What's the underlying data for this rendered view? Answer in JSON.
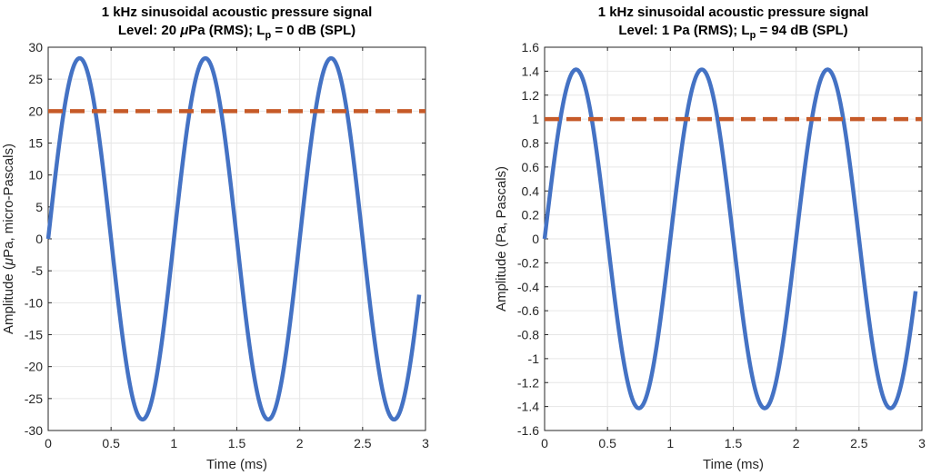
{
  "chart_data": [
    {
      "type": "line",
      "title_line1": "1 kHz sinusoidal acoustic pressure signal",
      "title_line2_prefix": "Level: 20 ",
      "title_line2_mu": "μ",
      "title_line2_mid": "Pa (RMS); L",
      "title_line2_sub": "p",
      "title_line2_suffix": " = 0 dB (SPL)",
      "xlabel": "Time (ms)",
      "ylabel_prefix": "Amplitude (",
      "ylabel_mu": "μ",
      "ylabel_suffix": "Pa, micro-Pascals)",
      "xlim": [
        0,
        3
      ],
      "ylim": [
        -30,
        30
      ],
      "xticks": [
        0,
        0.5,
        1,
        1.5,
        2,
        2.5,
        3
      ],
      "xtick_labels": [
        "0",
        "0.5",
        "1",
        "1.5",
        "2",
        "2.5",
        "3"
      ],
      "yticks": [
        -30,
        -25,
        -20,
        -15,
        -10,
        -5,
        0,
        5,
        10,
        15,
        20,
        25,
        30
      ],
      "ytick_labels": [
        "-30",
        "-25",
        "-20",
        "-15",
        "-10",
        "-5",
        "0",
        "5",
        "10",
        "15",
        "20",
        "25",
        "30"
      ],
      "grid": true,
      "series": [
        {
          "kind": "sine",
          "amplitude": 28.28,
          "frequency_per_ms": 1,
          "x_range": [
            0,
            2.95
          ],
          "color": "#4472c4",
          "style": "solid"
        },
        {
          "kind": "constant",
          "value": 20,
          "x_range": [
            0,
            3
          ],
          "color": "#c65a28",
          "style": "dashed"
        }
      ]
    },
    {
      "type": "line",
      "title_line1": "1 kHz sinusoidal acoustic pressure signal",
      "title_line2_prefix": "Level: 1 Pa (RMS); L",
      "title_line2_mu": "",
      "title_line2_mid": "",
      "title_line2_sub": "p",
      "title_line2_suffix": " = 94 dB (SPL)",
      "xlabel": "Time (ms)",
      "ylabel_prefix": "Amplitude (Pa, Pascals)",
      "ylabel_mu": "",
      "ylabel_suffix": "",
      "xlim": [
        0,
        3
      ],
      "ylim": [
        -1.6,
        1.6
      ],
      "xticks": [
        0,
        0.5,
        1,
        1.5,
        2,
        2.5,
        3
      ],
      "xtick_labels": [
        "0",
        "0.5",
        "1",
        "1.5",
        "2",
        "2.5",
        "3"
      ],
      "yticks": [
        -1.6,
        -1.4,
        -1.2,
        -1,
        -0.8,
        -0.6,
        -0.4,
        -0.2,
        0,
        0.2,
        0.4,
        0.6,
        0.8,
        1,
        1.2,
        1.4,
        1.6
      ],
      "ytick_labels": [
        "-1.6",
        "-1.4",
        "-1.2",
        "-1",
        "-0.8",
        "-0.6",
        "-0.4",
        "-0.2",
        "0",
        "0.2",
        "0.4",
        "0.6",
        "0.8",
        "1",
        "1.2",
        "1.4",
        "1.6"
      ],
      "grid": true,
      "series": [
        {
          "kind": "sine",
          "amplitude": 1.414,
          "frequency_per_ms": 1,
          "x_range": [
            0,
            2.95
          ],
          "color": "#4472c4",
          "style": "solid"
        },
        {
          "kind": "constant",
          "value": 1,
          "x_range": [
            0,
            3
          ],
          "color": "#c65a28",
          "style": "dashed"
        }
      ]
    }
  ]
}
